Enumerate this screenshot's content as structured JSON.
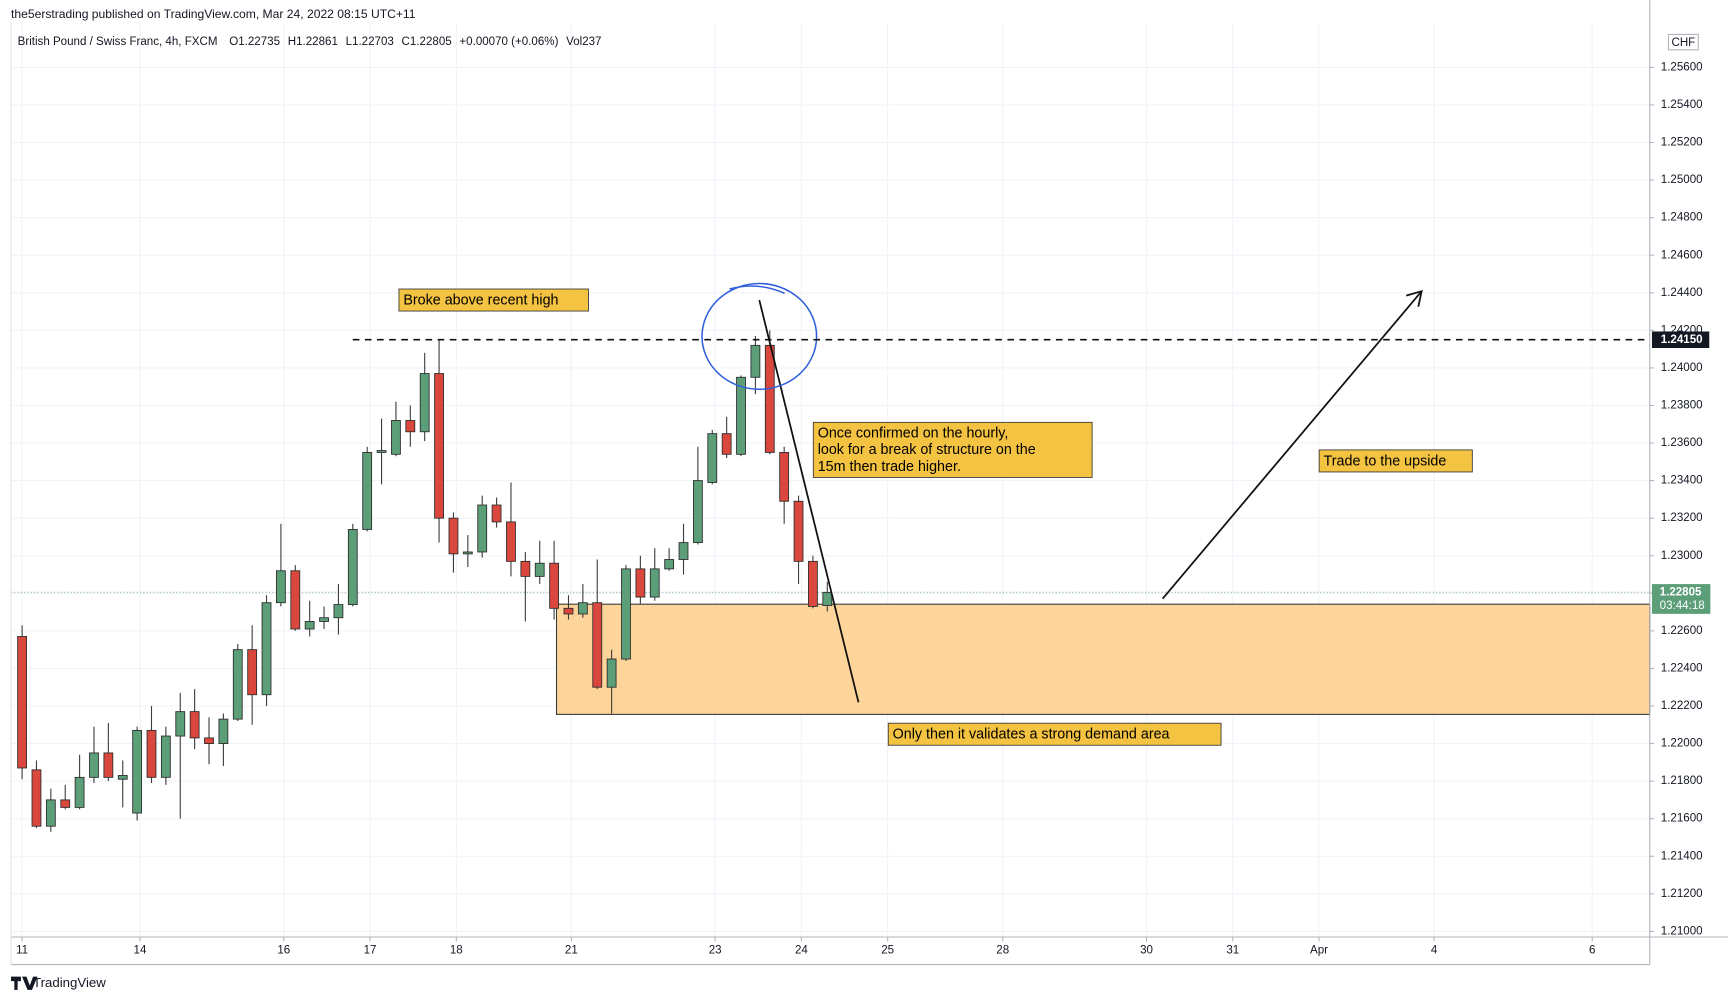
{
  "header": {
    "publisher": "the5erstrading published on TradingView.com, Mar 24, 2022 08:15 UTC+11",
    "symbol": "British Pound / Swiss Franc, 4h, FXCM",
    "quote": [
      "O1.22735",
      "H1.22861",
      "L1.22703",
      "C1.22805",
      "+0.00070 (+0.06%)",
      "Vol237"
    ]
  },
  "footer": "TradingView",
  "chart_data": {
    "type": "candlestick",
    "currency": "CHF",
    "up_color": "#5b9e78",
    "down_color": "#d9473d",
    "open": [
      1.2257,
      1.2186,
      1.2156,
      1.217,
      1.2166,
      1.2182,
      1.2195,
      1.2181,
      1.2163,
      1.2207,
      1.2182,
      1.2204,
      1.2217,
      1.2203,
      1.22,
      1.2213,
      1.225,
      1.2226,
      1.2275,
      1.2292,
      1.2261,
      1.2265,
      1.2267,
      1.2274,
      1.2314,
      1.2355,
      1.2354,
      1.2372,
      1.2366,
      1.2397,
      1.232,
      1.2301,
      1.2302,
      1.2327,
      1.2318,
      1.2297,
      1.2289,
      1.2296,
      1.2272,
      1.2269,
      1.2275,
      1.223,
      1.2245,
      1.2293,
      1.2278,
      1.2293,
      1.2298,
      1.2307,
      1.2339,
      1.2365,
      1.2354,
      1.2395,
      1.2412,
      1.2355,
      1.2329,
      1.2297,
      1.22735
    ],
    "high": [
      1.2263,
      1.2191,
      1.2176,
      1.2178,
      1.2194,
      1.2209,
      1.2211,
      1.2191,
      1.2209,
      1.222,
      1.2209,
      1.2227,
      1.2229,
      1.2214,
      1.2216,
      1.2253,
      1.2263,
      1.2279,
      1.2317,
      1.2295,
      1.2276,
      1.2273,
      1.2285,
      1.2317,
      1.2358,
      1.2373,
      1.2382,
      1.238,
      1.2408,
      1.2415,
      1.2323,
      1.2311,
      1.2332,
      1.2331,
      1.2339,
      1.2302,
      1.2308,
      1.2308,
      1.2279,
      1.2285,
      1.2298,
      1.225,
      1.2295,
      1.23,
      1.2304,
      1.2304,
      1.2317,
      1.2358,
      1.2367,
      1.2374,
      1.2396,
      1.2417,
      1.242,
      1.2358,
      1.2332,
      1.23,
      1.22861
    ],
    "low": [
      1.2181,
      1.2155,
      1.2153,
      1.2165,
      1.2165,
      1.2179,
      1.218,
      1.2166,
      1.2159,
      1.2179,
      1.2178,
      1.216,
      1.2197,
      1.2189,
      1.2188,
      1.2212,
      1.221,
      1.222,
      1.2273,
      1.226,
      1.2257,
      1.2261,
      1.2258,
      1.2273,
      1.2313,
      1.2338,
      1.2353,
      1.2358,
      1.2361,
      1.2307,
      1.2291,
      1.2294,
      1.2299,
      1.2315,
      1.2289,
      1.2265,
      1.2285,
      1.2266,
      1.2266,
      1.2267,
      1.2229,
      1.2216,
      1.2244,
      1.2274,
      1.2276,
      1.2292,
      1.229,
      1.2306,
      1.2338,
      1.2352,
      1.2353,
      1.2386,
      1.2354,
      1.2317,
      1.2285,
      1.2272,
      1.22703
    ],
    "close": [
      1.2187,
      1.2156,
      1.217,
      1.2166,
      1.2182,
      1.2195,
      1.2182,
      1.2183,
      1.2207,
      1.2182,
      1.2204,
      1.2217,
      1.2203,
      1.22,
      1.2213,
      1.225,
      1.2226,
      1.2275,
      1.2292,
      1.2261,
      1.2265,
      1.2267,
      1.2274,
      1.2314,
      1.2355,
      1.2356,
      1.2372,
      1.2366,
      1.2397,
      1.232,
      1.2301,
      1.2302,
      1.2327,
      1.2318,
      1.2297,
      1.2289,
      1.2296,
      1.2272,
      1.2269,
      1.2275,
      1.223,
      1.2245,
      1.2293,
      1.2278,
      1.2293,
      1.2298,
      1.2307,
      1.234,
      1.2365,
      1.2354,
      1.2395,
      1.2412,
      1.2355,
      1.2329,
      1.2297,
      1.2273,
      1.22805
    ],
    "xlim": [
      -0.77,
      113.2
    ],
    "xticks": [
      {
        "value": 0,
        "label": "11"
      },
      {
        "value": 8.2,
        "label": "14"
      },
      {
        "value": 18.2,
        "label": "16"
      },
      {
        "value": 24.2,
        "label": "17"
      },
      {
        "value": 30.2,
        "label": "18"
      },
      {
        "value": 38.2,
        "label": "21"
      },
      {
        "value": 48.2,
        "label": "23"
      },
      {
        "value": 54.2,
        "label": "24"
      },
      {
        "value": 60.2,
        "label": "25"
      },
      {
        "value": 68.2,
        "label": "28"
      },
      {
        "value": 78.2,
        "label": "30"
      },
      {
        "value": 84.2,
        "label": "31"
      },
      {
        "value": 90.2,
        "label": "Apr"
      },
      {
        "value": 98.2,
        "label": "4"
      },
      {
        "value": 109.2,
        "label": "6"
      }
    ],
    "ylim": [
      1.2097,
      1.2584
    ],
    "yticks": [
      {
        "value": 1.21,
        "label": "1.21000"
      },
      {
        "value": 1.212,
        "label": "1.21200"
      },
      {
        "value": 1.214,
        "label": "1.21400"
      },
      {
        "value": 1.216,
        "label": "1.21600"
      },
      {
        "value": 1.218,
        "label": "1.21800"
      },
      {
        "value": 1.22,
        "label": "1.22000"
      },
      {
        "value": 1.222,
        "label": "1.22200"
      },
      {
        "value": 1.224,
        "label": "1.22400"
      },
      {
        "value": 1.226,
        "label": "1.22600"
      },
      {
        "value": 1.228,
        "label": "1.22800"
      },
      {
        "value": 1.23,
        "label": "1.23000"
      },
      {
        "value": 1.232,
        "label": "1.23200"
      },
      {
        "value": 1.234,
        "label": "1.23400"
      },
      {
        "value": 1.236,
        "label": "1.23600"
      },
      {
        "value": 1.238,
        "label": "1.23800"
      },
      {
        "value": 1.24,
        "label": "1.24000"
      },
      {
        "value": 1.242,
        "label": "1.24200"
      },
      {
        "value": 1.244,
        "label": "1.24400"
      },
      {
        "value": 1.246,
        "label": "1.24600"
      },
      {
        "value": 1.248,
        "label": "1.24800"
      },
      {
        "value": 1.25,
        "label": "1.25000"
      },
      {
        "value": 1.252,
        "label": "1.25200"
      },
      {
        "value": 1.254,
        "label": "1.25400"
      },
      {
        "value": 1.256,
        "label": "1.25600"
      }
    ],
    "grid": true,
    "level": {
      "value": 1.2415,
      "label": "1.24150"
    },
    "last_price": {
      "value": 1.22805,
      "label": "1.22805",
      "countdown": "03:44:18"
    },
    "annotations": [
      [
        "Broke above recent high"
      ],
      [
        "Once confirmed on the hourly,",
        "look for a break of structure on the",
        "15m then trade higher."
      ],
      [
        "Trade to the upside"
      ],
      [
        "Only then it validates a strong demand area"
      ]
    ]
  }
}
